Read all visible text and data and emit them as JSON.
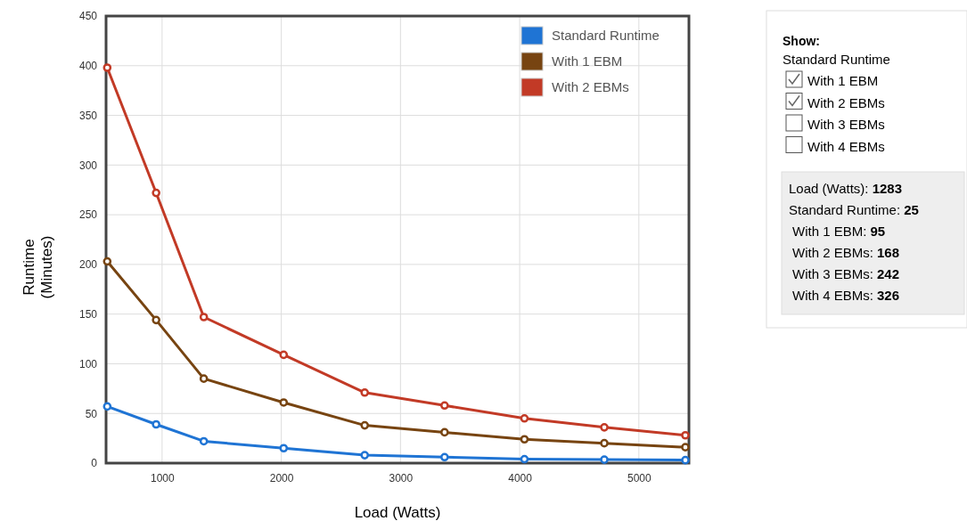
{
  "chart_data": {
    "type": "line",
    "xlabel": "Load (Watts)",
    "ylabel": "Runtime (Minutes)",
    "x": [
      540,
      950,
      1350,
      2020,
      2700,
      3370,
      4040,
      4710,
      5390
    ],
    "series": [
      {
        "name": "Standard Runtime",
        "color": "#1f74d4",
        "values": [
          57,
          39,
          22,
          15,
          8,
          6,
          4,
          3.5,
          3
        ]
      },
      {
        "name": "With 1 EBM",
        "color": "#774411",
        "values": [
          203,
          144,
          85,
          61,
          38,
          31,
          24,
          20,
          16
        ]
      },
      {
        "name": "With 2 EBMs",
        "color": "#c23a26",
        "values": [
          398,
          272,
          147,
          109,
          71,
          58,
          45,
          36,
          28
        ]
      }
    ],
    "xlim": [
      530,
      5420
    ],
    "xticks": [
      1000,
      2000,
      3000,
      4000,
      5000
    ],
    "ylim": [
      0,
      450
    ],
    "yticks": [
      0,
      50,
      100,
      150,
      200,
      250,
      300,
      350,
      400,
      450
    ],
    "grid": true,
    "legend": "top right",
    "marker": "circle",
    "line_style": "solid",
    "annotations": [
      "Show:",
      "Standard Runtime",
      "With 1 EBM",
      "With 2 EBMs",
      "With 3 EBMs",
      "With 4 EBMs",
      "Load (Watts): 1283",
      "Standard Runtime: 25",
      "With 1 EBM: 95",
      "With 2 EBMs: 168",
      "With 3 EBMs: 242",
      "With 4 EBMs: 326"
    ]
  }
}
